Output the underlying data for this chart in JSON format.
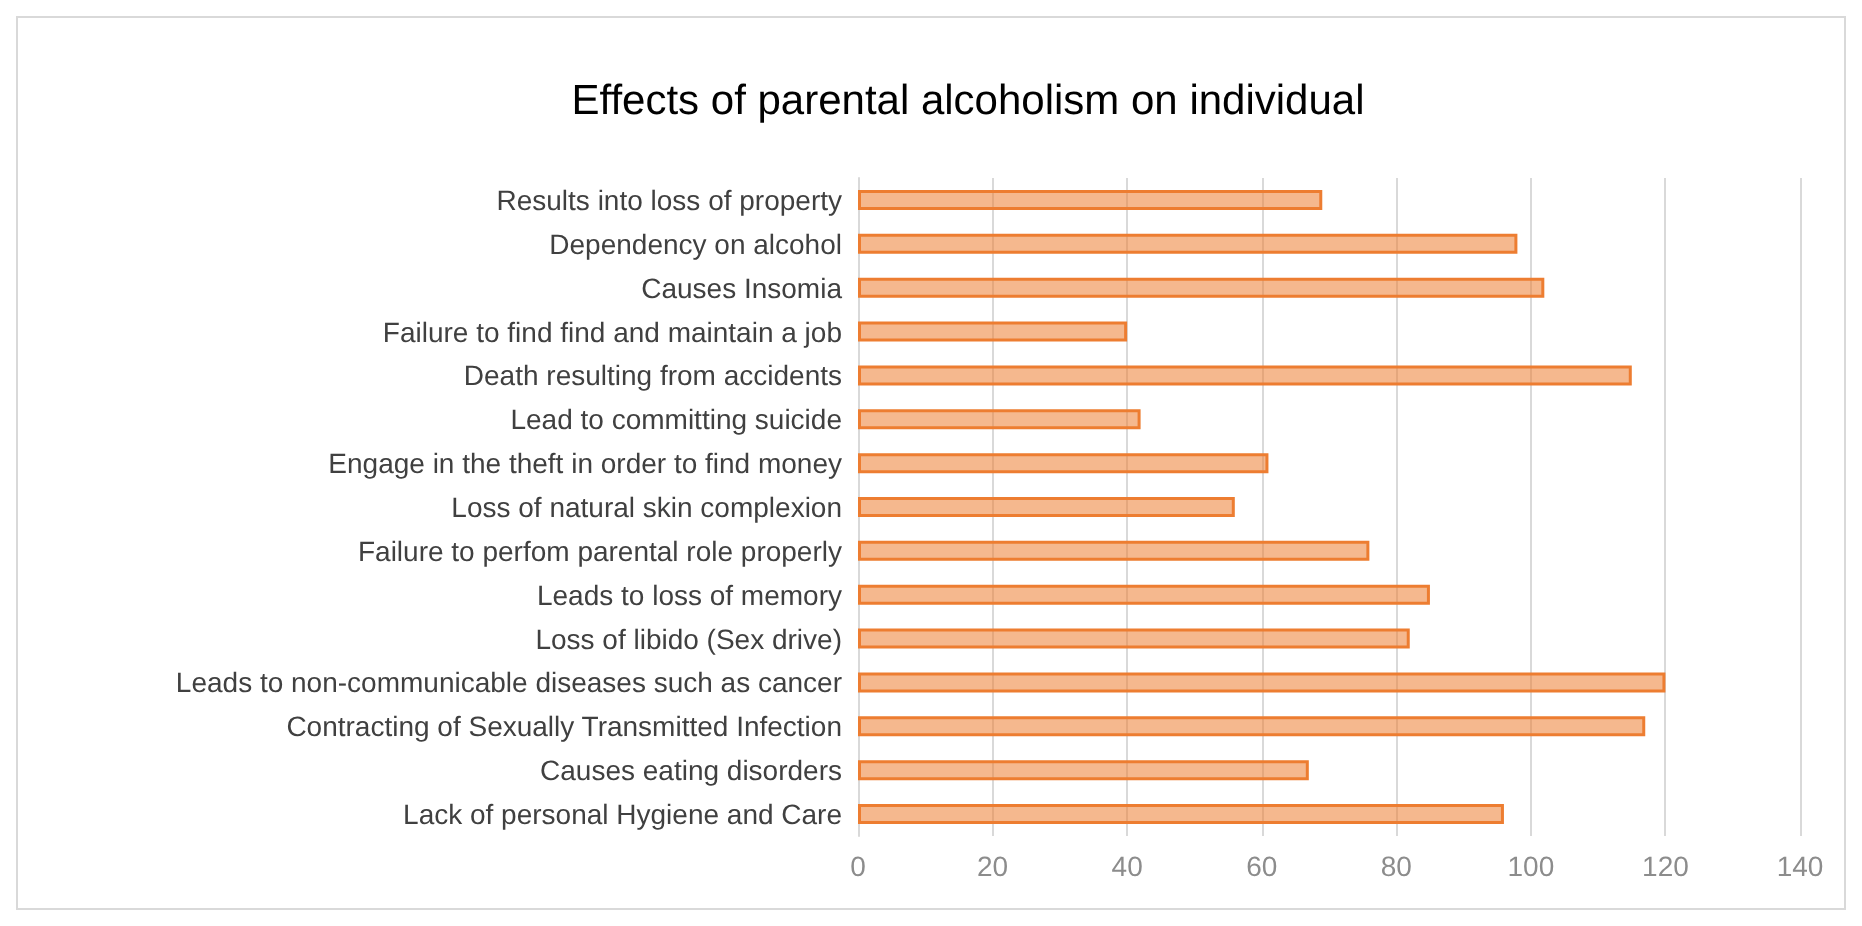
{
  "chart_data": {
    "type": "bar",
    "orientation": "horizontal",
    "title": "Effects of parental alcoholism on individual",
    "categories": [
      "Results into loss of property",
      "Dependency on alcohol",
      "Causes Insomia",
      "Failure to find find and maintain a job",
      "Death resulting from accidents",
      "Lead to committing suicide",
      "Engage in the theft in order to find money",
      "Loss of natural skin complexion",
      "Failure to perfom parental role properly",
      "Leads to loss of memory",
      "Loss of libido (Sex drive)",
      "Leads to non-communicable diseases such as cancer",
      "Contracting of Sexually Transmitted Infection",
      "Causes eating disorders",
      "Lack of personal Hygiene and Care"
    ],
    "values": [
      69,
      98,
      102,
      40,
      115,
      42,
      61,
      56,
      76,
      85,
      82,
      120,
      117,
      67,
      96
    ],
    "color": "#ed7d31",
    "xlim": [
      0,
      140
    ],
    "xticks": [
      0,
      20,
      40,
      60,
      80,
      100,
      120,
      140
    ],
    "grid": "x"
  }
}
